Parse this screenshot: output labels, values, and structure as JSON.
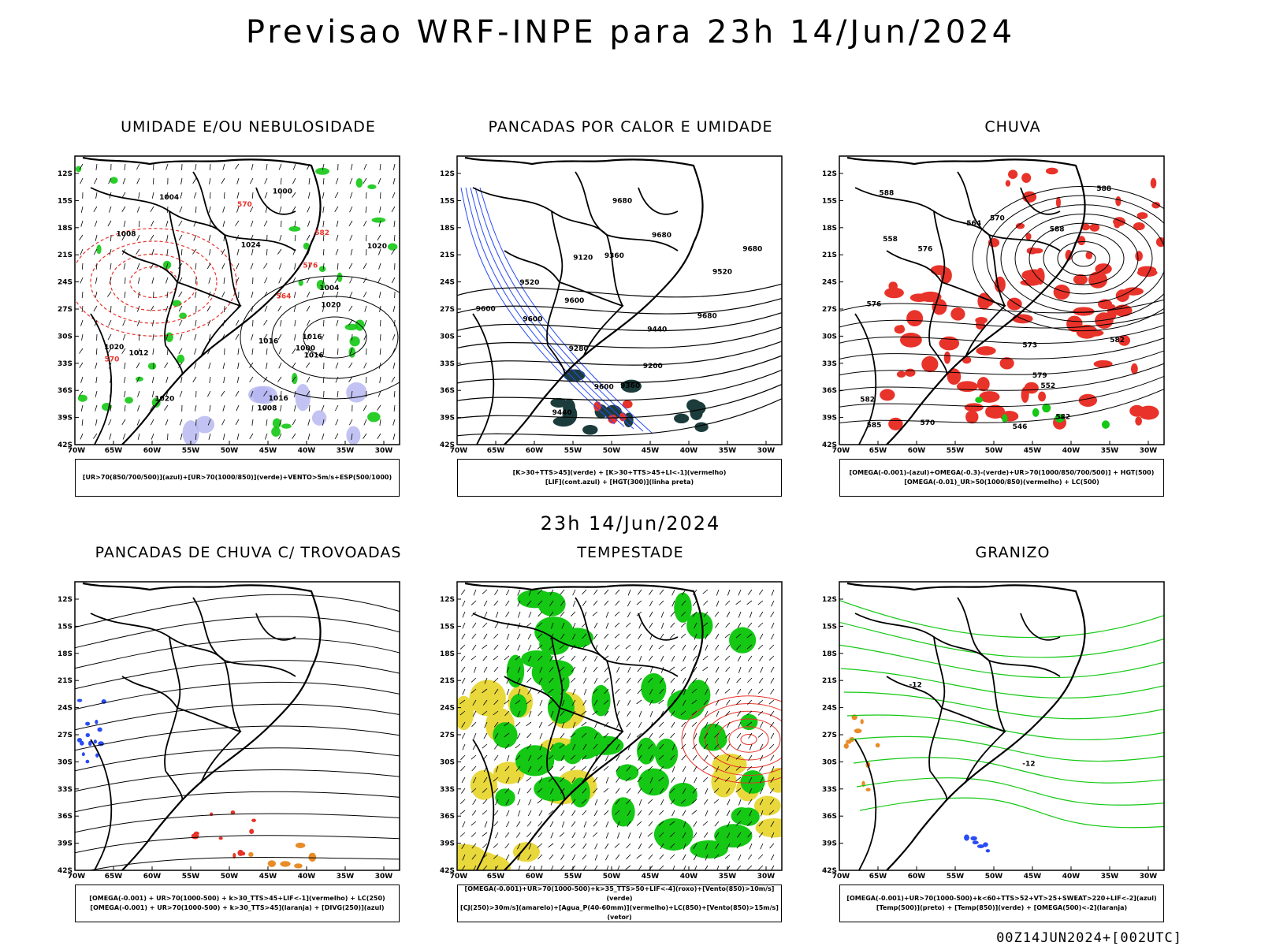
{
  "main_title": "Previsao WRF-INPE  para 23h 14/Jun/2024",
  "mid_title": "23h 14/Jun/2024",
  "footer": "00Z14JUN2024+[002UTC]",
  "lat_labels": [
    "12S",
    "15S",
    "18S",
    "21S",
    "24S",
    "27S",
    "30S",
    "33S",
    "36S",
    "39S",
    "42S"
  ],
  "lon_labels": [
    "70W",
    "65W",
    "60W",
    "55W",
    "50W",
    "45W",
    "40W",
    "35W",
    "30W"
  ],
  "colors": {
    "red": "#e8332a",
    "green": "#14c814",
    "blue": "#2a4cf5",
    "lavender": "#b4b4f0",
    "dark_teal": "#1c3c3c",
    "yellow": "#e8d83c",
    "orange": "#e88c28",
    "black": "#000000"
  },
  "panels": [
    {
      "id": "umidade",
      "title": "UMIDADE E/OU NEBULOSIDADE",
      "legend": [
        "[UR>70(850/700/500)](azul)+[UR>70(1000/850)](verde)+VENTO>5m/s+ESP(500/1000)"
      ],
      "contour_labels": [
        "1016",
        "1016",
        "1020",
        "1020",
        "1008",
        "1016",
        "1012",
        "1020",
        "1024",
        "1020",
        "1004",
        "1008",
        "1016",
        "1000",
        "1000",
        "1004",
        "576",
        "570",
        "582",
        "564",
        "570"
      ]
    },
    {
      "id": "pancadas-calor",
      "title": "PANCADAS POR CALOR E UMIDADE",
      "legend": [
        "[K>30+TTS>45](verde) + [K>30+TTS>45+LI<-1](vermelho)",
        "[LIF](cont.azul) + [HGT(300)](linha preta)"
      ],
      "contour_labels": [
        "9680",
        "9680",
        "9680",
        "9680",
        "9600",
        "9600",
        "9600",
        "9520",
        "9440",
        "9360",
        "9280",
        "9200",
        "9120",
        "9440",
        "9360",
        "9520",
        "9600"
      ]
    },
    {
      "id": "chuva",
      "title": "CHUVA",
      "legend": [
        "[OMEGA(-0.001)-(azul)+OMEGA(-0.3)-(verde)+UR>70(1000/850/700/500)] + HGT(500)",
        "[OMEGA(-0.01)_UR>50(1000/850)(vermelho) + LC(500)"
      ],
      "contour_labels": [
        "582",
        "588",
        "582",
        "588",
        "582",
        "576",
        "576",
        "570",
        "564",
        "558",
        "552",
        "546",
        "573",
        "579",
        "585",
        "588",
        "570"
      ]
    },
    {
      "id": "pancadas-trovoadas",
      "title": "PANCADAS DE CHUVA C/ TROVOADAS",
      "legend": [
        "[OMEGA(-0.001) + UR>70(1000-500) + k>30_TTS>45+LIF<-1](vermelho) + LC(250)",
        "[OMEGA(-0.001) + UR>70(1000-500) + k>30_TTS>45](laranja) + [DIVG(250)](azul)"
      ],
      "contour_labels": []
    },
    {
      "id": "tempestade",
      "title": "TEMPESTADE",
      "legend": [
        "[OMEGA(-0.001)+UR>70(1000-500)+k>35_TTS>50+LIF<-4](roxo)+[Vento(850)>10m/s](verde)",
        "[CJ(250)>30m/s](amarelo)+[Agua_P(40-60mm)](vermelho)+LC(850)+[Vento(850)>15m/s](vetor)"
      ],
      "contour_labels": []
    },
    {
      "id": "granizo",
      "title": "GRANIZO",
      "legend": [
        "[OMEGA(-0.001)+UR>70(1000-500)+k<60+TTS>52+VT>25+SWEAT>220+LIF<-2](azul)",
        "[Temp(500)](preto) + [Temp(850)](verde) + [OMEGA(500)<-2](laranja)"
      ],
      "contour_labels": [
        "-12",
        "-12"
      ]
    }
  ]
}
